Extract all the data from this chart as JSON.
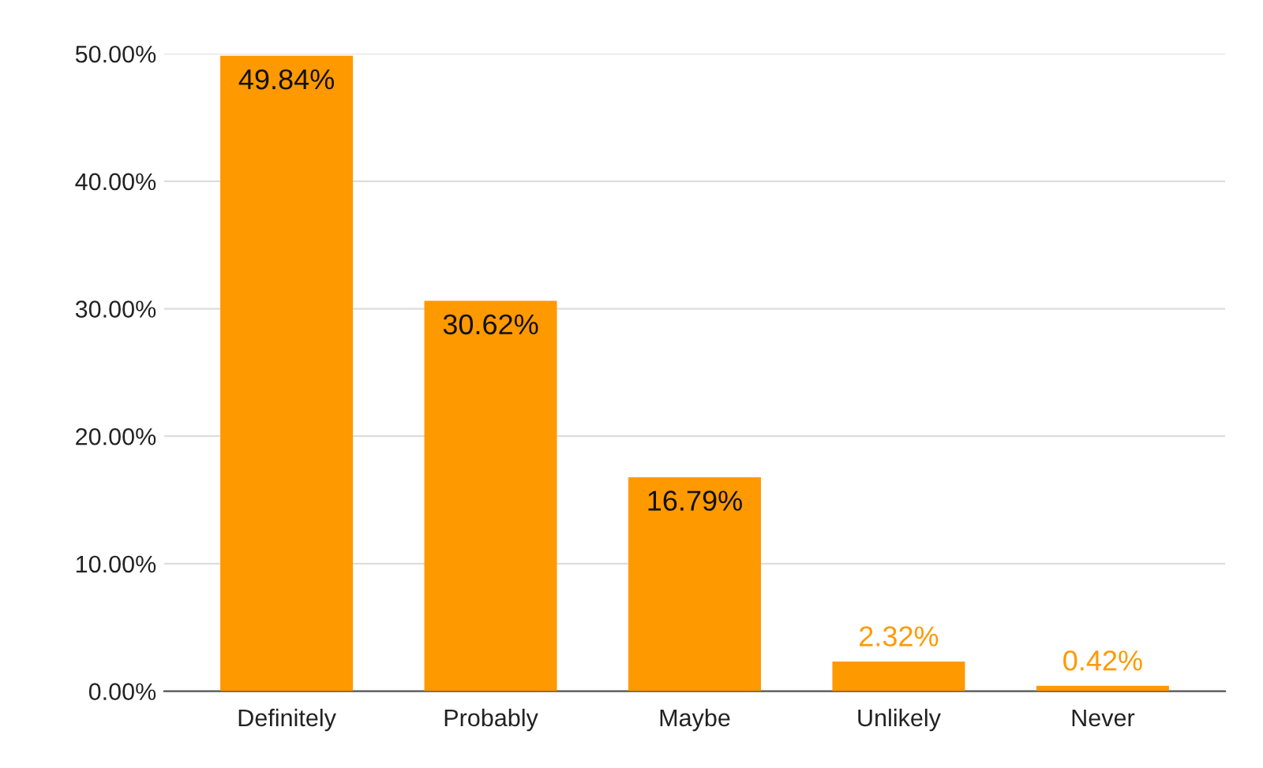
{
  "chart_data": {
    "type": "bar",
    "categories": [
      "Definitely",
      "Probably",
      "Maybe",
      "Unlikely",
      "Never"
    ],
    "values": [
      49.84,
      30.62,
      16.79,
      2.32,
      0.42
    ],
    "value_labels": [
      "49.84%",
      "30.62%",
      "16.79%",
      "2.32%",
      "0.42%"
    ],
    "color": "#ff9900",
    "ylim": [
      0,
      50
    ],
    "yticks": [
      {
        "value": 0,
        "label": "0.00%"
      },
      {
        "value": 10,
        "label": "10.00%"
      },
      {
        "value": 20,
        "label": "20.00%"
      },
      {
        "value": 30,
        "label": "30.00%"
      },
      {
        "value": 40,
        "label": "40.00%"
      },
      {
        "value": 50,
        "label": "50.00%"
      }
    ],
    "grid": "y",
    "legend": false
  }
}
